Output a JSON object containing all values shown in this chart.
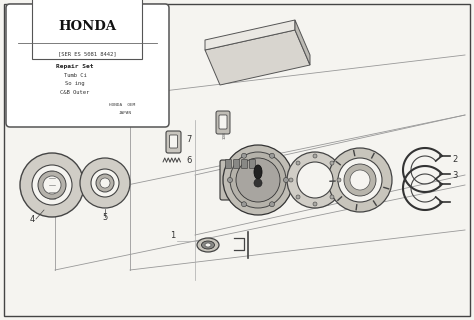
{
  "bg_color": "#f5f4f0",
  "line_color": "#444444",
  "label_color": "#333333",
  "part_labels": [
    "1",
    "2",
    "3",
    "4",
    "5",
    "6",
    "7"
  ],
  "honda_text": "HONDA",
  "info_lines": [
    "[SER ES 5081 8442]",
    "Repair Set",
    "Tumb Ci",
    "So ing",
    "C&B Outer"
  ],
  "made_by": "HONDA  OEM",
  "made_in": "JAPAN",
  "persp_lines": [
    [
      [
        55,
        270
      ],
      [
        465,
        185
      ]
    ],
    [
      [
        55,
        200
      ],
      [
        465,
        115
      ]
    ],
    [
      [
        130,
        270
      ],
      [
        465,
        230
      ]
    ],
    [
      [
        130,
        95
      ],
      [
        465,
        55
      ]
    ]
  ],
  "inner_persp": [
    [
      [
        195,
        235
      ],
      [
        465,
        175
      ]
    ],
    [
      [
        195,
        175
      ],
      [
        465,
        115
      ]
    ]
  ]
}
